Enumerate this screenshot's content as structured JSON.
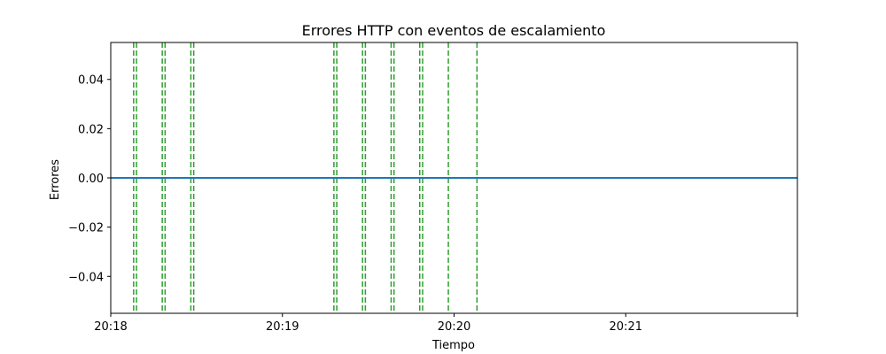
{
  "chart_data": {
    "type": "line",
    "title": "Errores HTTP con eventos de escalamiento",
    "xlabel": "Tiempo",
    "ylabel": "Errores",
    "xlim": [
      "20:18:00",
      "20:22:00"
    ],
    "ylim": [
      -0.055,
      0.055
    ],
    "x_ticks": [
      {
        "value": "20:18:00",
        "label": "20:18"
      },
      {
        "value": "20:19:00",
        "label": "20:19"
      },
      {
        "value": "20:20:00",
        "label": "20:20"
      },
      {
        "value": "20:21:00",
        "label": "20:21"
      },
      {
        "value": "20:22:00",
        "label": ""
      }
    ],
    "y_ticks": [
      0.04,
      0.02,
      0.0,
      -0.02,
      -0.04
    ],
    "y_tick_labels": [
      "0.04",
      "0.02",
      "0.00",
      "−0.02",
      "−0.04"
    ],
    "grid": false,
    "series": [
      {
        "color": "#1f77b4",
        "x": [
          "20:18:00",
          "20:22:00"
        ],
        "values": [
          0,
          0
        ]
      }
    ],
    "events": {
      "style": "dashed-vertical",
      "color": "#2ca02c",
      "x": [
        "20:18:08",
        "20:18:09",
        "20:18:18",
        "20:18:19",
        "20:18:28",
        "20:18:29",
        "20:19:18",
        "20:19:19",
        "20:19:28",
        "20:19:29",
        "20:19:38",
        "20:19:39",
        "20:19:48",
        "20:19:49",
        "20:19:58",
        "20:20:08"
      ]
    }
  }
}
